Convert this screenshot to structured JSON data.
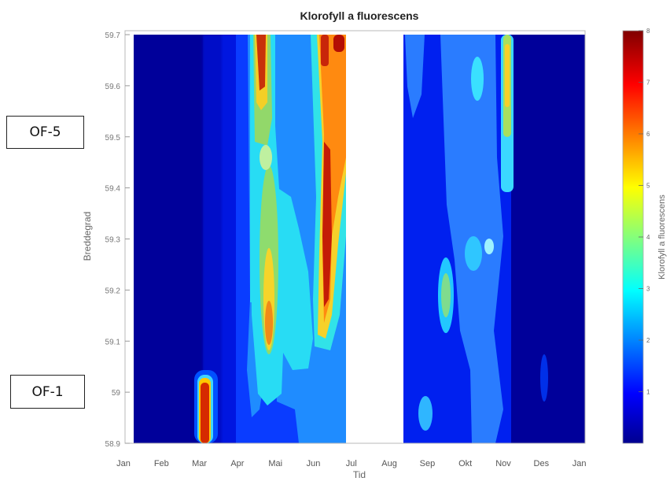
{
  "annotations": [
    {
      "name": "station-label-of-5",
      "text": "OF-5"
    },
    {
      "name": "station-label-of-1",
      "text": "OF-1"
    }
  ],
  "chart_data": {
    "type": "heatmap",
    "title": "Klorofyll a fluorescens",
    "xlabel": "Tid",
    "ylabel": "Breddegrad",
    "x_ticks": [
      "Jan",
      "Feb",
      "Mar",
      "Apr",
      "Mai",
      "Jun",
      "Jul",
      "Aug",
      "Sep",
      "Okt",
      "Nov",
      "Des",
      "Jan"
    ],
    "y_ticks": [
      "58.9",
      "59",
      "59.1",
      "59.2",
      "59.3",
      "59.4",
      "59.5",
      "59.6",
      "59.7"
    ],
    "ylim": [
      58.9,
      59.7
    ],
    "colorbar": {
      "label": "Klorofyll a fluorescens",
      "ticks": [
        "1",
        "2",
        "3",
        "4",
        "5",
        "6",
        "7",
        "8"
      ],
      "range": [
        0,
        8
      ],
      "colormap": "jet"
    },
    "no_data_gap": [
      "Jul",
      "Aug"
    ],
    "features": [
      {
        "month": 3.05,
        "lat_from": 58.9,
        "lat_to": 59.02,
        "value": 7.3
      },
      {
        "month": 4.9,
        "lat_from": 59.55,
        "lat_to": 59.7,
        "value": 7.6
      },
      {
        "month": 4.95,
        "lat_from": 59.05,
        "lat_to": 59.25,
        "value": 6.0
      },
      {
        "month": 6.15,
        "lat_from": 59.1,
        "lat_to": 59.45,
        "value": 7.3
      },
      {
        "month": 6.3,
        "lat_from": 59.5,
        "lat_to": 59.7,
        "value": 6.5
      },
      {
        "month": 9.25,
        "lat_from": 59.1,
        "lat_to": 59.25,
        "value": 4.2
      },
      {
        "month": 10.2,
        "lat_from": 59.55,
        "lat_to": 59.65,
        "value": 3.5
      },
      {
        "month": 11.1,
        "lat_from": 59.55,
        "lat_to": 59.7,
        "value": 4.8
      }
    ]
  }
}
